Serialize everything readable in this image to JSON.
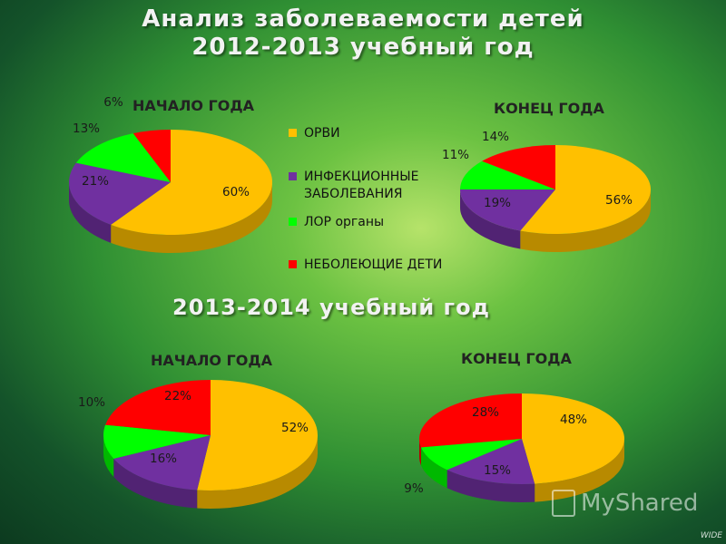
{
  "title_line1": "Анализ заболеваемости детей",
  "title_line2": "2012-2013 учебный год",
  "subtitle": "2013-2014 учебный год",
  "legend": [
    {
      "label": "ОРВИ",
      "color": "#FFC000"
    },
    {
      "label": "ИНФЕКЦИОННЫЕ ЗАБОЛЕВАНИЯ",
      "color": "#7030A0"
    },
    {
      "label": "ЛОР органы",
      "color": "#00FF00"
    },
    {
      "label": "НЕБОЛЕЮЩИЕ ДЕТИ",
      "color": "#FF0000"
    }
  ],
  "watermark": "MyShared",
  "corner_text": "WIDE",
  "chart_data": [
    {
      "type": "pie",
      "title": "НАЧАЛО ГОДА",
      "categories": [
        "ОРВИ",
        "ИНФЕКЦИОННЫЕ ЗАБОЛЕВАНИЯ",
        "ЛОР органы",
        "НЕБОЛЕЮЩИЕ ДЕТИ"
      ],
      "values": [
        60,
        21,
        13,
        6
      ],
      "labels": [
        "60%",
        "21%",
        "13%",
        "6%"
      ]
    },
    {
      "type": "pie",
      "title": "КОНЕЦ ГОДА",
      "categories": [
        "ОРВИ",
        "ИНФЕКЦИОННЫЕ ЗАБОЛЕВАНИЯ",
        "ЛОР органы",
        "НЕБОЛЕЮЩИЕ ДЕТИ"
      ],
      "values": [
        56,
        19,
        11,
        14
      ],
      "labels": [
        "56%",
        "19%",
        "11%",
        "14%"
      ]
    },
    {
      "type": "pie",
      "title": "НАЧАЛО ГОДА",
      "categories": [
        "ОРВИ",
        "ИНФЕКЦИОННЫЕ ЗАБОЛЕВАНИЯ",
        "ЛОР органы",
        "НЕБОЛЕЮЩИЕ ДЕТИ"
      ],
      "values": [
        52,
        16,
        10,
        22
      ],
      "labels": [
        "52%",
        "16%",
        "10%",
        "22%"
      ]
    },
    {
      "type": "pie",
      "title": "КОНЕЦ ГОДА",
      "categories": [
        "ОРВИ",
        "ИНФЕКЦИОННЫЕ ЗАБОЛЕВАНИЯ",
        "ЛОР органы",
        "НЕБОЛЕЮЩИЕ ДЕТИ"
      ],
      "values": [
        48,
        15,
        9,
        28
      ],
      "labels": [
        "48%",
        "15%",
        "9%",
        "28%"
      ]
    }
  ]
}
